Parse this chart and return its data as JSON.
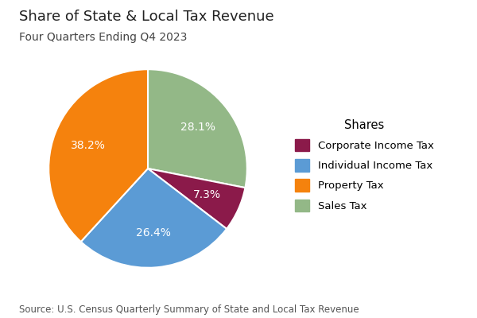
{
  "title": "Share of State & Local Tax Revenue",
  "subtitle": "Four Quarters Ending Q4 2023",
  "source": "Source: U.S. Census Quarterly Summary of State and Local Tax Revenue",
  "legend_title": "Shares",
  "labels": [
    "Corporate Income Tax",
    "Individual Income Tax",
    "Property Tax",
    "Sales Tax"
  ],
  "values": [
    7.3,
    26.4,
    38.2,
    28.1
  ],
  "colors": [
    "#8B1A4A",
    "#5B9BD5",
    "#F5820D",
    "#93B887"
  ],
  "pie_order": [
    3,
    0,
    1,
    2
  ],
  "background_color": "#FFFFFF",
  "title_fontsize": 13,
  "subtitle_fontsize": 10,
  "source_fontsize": 8.5,
  "pct_fontsize": 10,
  "legend_fontsize": 9.5
}
